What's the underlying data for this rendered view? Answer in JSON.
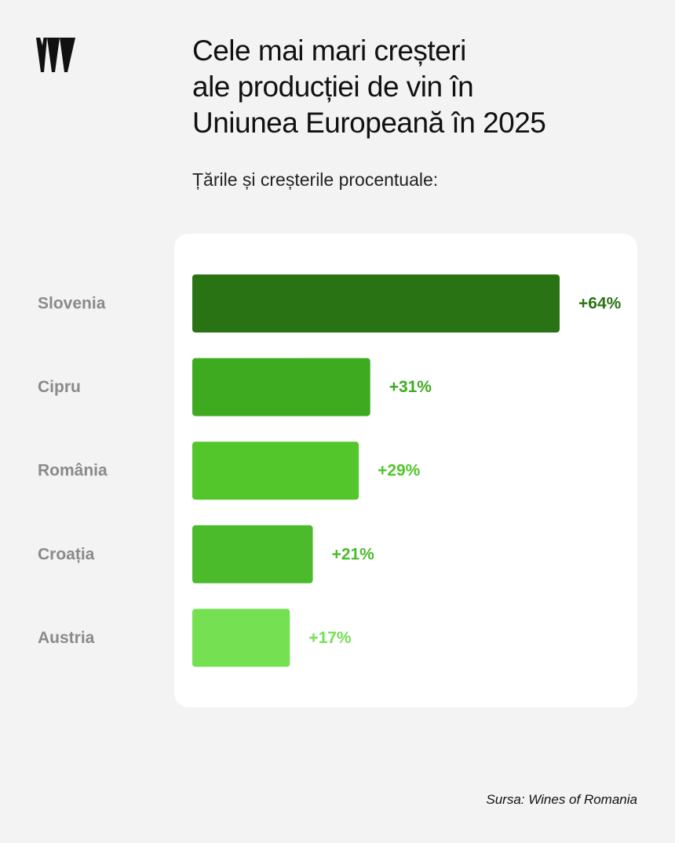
{
  "chart_data": {
    "type": "bar",
    "title": "Cele mai mari creșteri\nale producției de vin în\nUniunea Europeană în 2025",
    "subtitle": "Țările și creșterile procentuale:",
    "categories": [
      "Slovenia",
      "Cipru",
      "România",
      "Croația",
      "Austria"
    ],
    "values": [
      64,
      31,
      29,
      21,
      17
    ],
    "value_labels": [
      "+64%",
      "+31%",
      "+29%",
      "+21%",
      "+17%"
    ],
    "colors": [
      "#2a7314",
      "#3eaa20",
      "#52c62b",
      "#4bbb2c",
      "#74e052"
    ],
    "source": "Sursa: Wines of Romania"
  }
}
